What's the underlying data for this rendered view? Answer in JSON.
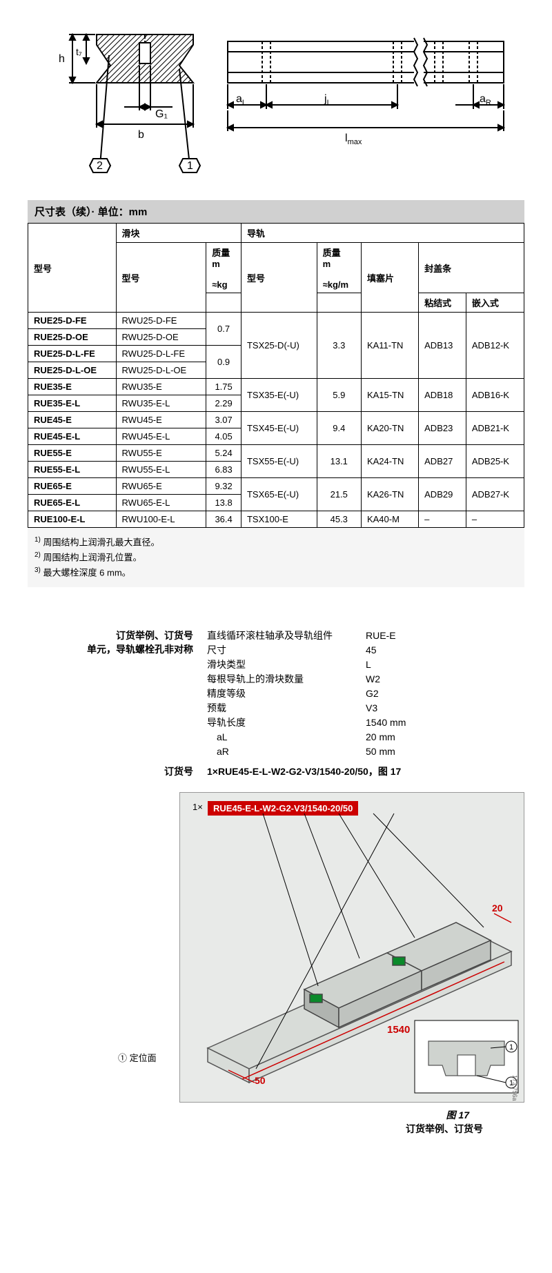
{
  "diagram": {
    "labels": {
      "h": "h",
      "t7": "t₇",
      "G1": "G₁",
      "b": "b",
      "aL": "a",
      "aLsub": "L",
      "jL": "j",
      "jLsub": "L",
      "aR": "a",
      "aRsub": "R",
      "lmax": "l",
      "lmaxsub": "max",
      "n1": "1",
      "n2": "2"
    }
  },
  "table": {
    "title": "尺寸表（续）· 单位：mm",
    "headers": {
      "model": "型号",
      "slider": "滑块",
      "rail": "导轨",
      "slider_model": "型号",
      "mass": "质量",
      "m": "m",
      "kg": "≈kg",
      "rail_model": "型号",
      "kgm": "≈kg/m",
      "filler": "填塞片",
      "cover": "封盖条",
      "adhesive": "粘结式",
      "embedded": "嵌入式"
    },
    "rows": [
      {
        "m": "RUE25-D-FE",
        "sm": "RWU25-D-FE",
        "mass": "0.7",
        "mass_span": 2,
        "rm": "TSX25-D(-U)",
        "rmass": "3.3",
        "filler": "KA11-TN",
        "adh": "ADB13",
        "emb": "ADB12-K",
        "g_span": 4
      },
      {
        "m": "RUE25-D-OE",
        "sm": "RWU25-D-OE"
      },
      {
        "m": "RUE25-D-L-FE",
        "sm": "RWU25-D-L-FE",
        "mass": "0.9",
        "mass_span": 2
      },
      {
        "m": "RUE25-D-L-OE",
        "sm": "RWU25-D-L-OE"
      },
      {
        "m": "RUE35-E",
        "sm": "RWU35-E",
        "mass": "1.75",
        "rm": "TSX35-E(-U)",
        "rmass": "5.9",
        "filler": "KA15-TN",
        "adh": "ADB18",
        "emb": "ADB16-K",
        "g_span": 2
      },
      {
        "m": "RUE35-E-L",
        "sm": "RWU35-E-L",
        "mass": "2.29"
      },
      {
        "m": "RUE45-E",
        "sm": "RWU45-E",
        "mass": "3.07",
        "rm": "TSX45-E(-U)",
        "rmass": "9.4",
        "filler": "KA20-TN",
        "adh": "ADB23",
        "emb": "ADB21-K",
        "g_span": 2
      },
      {
        "m": "RUE45-E-L",
        "sm": "RWU45-E-L",
        "mass": "4.05"
      },
      {
        "m": "RUE55-E",
        "sm": "RWU55-E",
        "mass": "5.24",
        "rm": "TSX55-E(-U)",
        "rmass": "13.1",
        "filler": "KA24-TN",
        "adh": "ADB27",
        "emb": "ADB25-K",
        "g_span": 2
      },
      {
        "m": "RUE55-E-L",
        "sm": "RWU55-E-L",
        "mass": "6.83"
      },
      {
        "m": "RUE65-E",
        "sm": "RWU65-E",
        "mass": "9.32",
        "rm": "TSX65-E(-U)",
        "rmass": "21.5",
        "filler": "KA26-TN",
        "adh": "ADB29",
        "emb": "ADB27-K",
        "g_span": 2
      },
      {
        "m": "RUE65-E-L",
        "sm": "RWU65-E-L",
        "mass": "13.8"
      },
      {
        "m": "RUE100-E-L",
        "sm": "RWU100-E-L",
        "mass": "36.4",
        "rm": "TSX100-E",
        "rmass": "45.3",
        "filler": "KA40-M",
        "adh": "–",
        "emb": "–",
        "g_span": 1
      }
    ]
  },
  "footnotes": {
    "f1": "周围结构上润滑孔最大直径。",
    "f2": "周围结构上润滑孔位置。",
    "f3": "最大螺栓深度 6 mm。"
  },
  "order": {
    "heading1": "订货举例、订货号",
    "heading2": "单元，导轨螺栓孔非对称",
    "specs": [
      {
        "label": "直线循环滚柱轴承及导轨组件",
        "val": "RUE-E"
      },
      {
        "label": "尺寸",
        "val": "45"
      },
      {
        "label": "滑块类型",
        "val": "L"
      },
      {
        "label": "每根导轨上的滑块数量",
        "val": "W2"
      },
      {
        "label": "精度等级",
        "val": "G2"
      },
      {
        "label": "预载",
        "val": "V3"
      },
      {
        "label": "导轨长度",
        "val": "1540 mm"
      },
      {
        "label": "　aL",
        "val": "20 mm"
      },
      {
        "label": "　aR",
        "val": "50 mm"
      }
    ],
    "code_label": "订货号",
    "code_val": "1×RUE45-E-L-W2-G2-V3/1540-20/50，图 17",
    "badge_prefix": "1×",
    "badge": "RUE45-E-L-W2-G2-V3/1540-20/50",
    "loc": "① 定位面",
    "fig_num": "图 17",
    "fig_caption": "订货举例、订货号",
    "side": "173 756a",
    "dim20": "20",
    "dim50": "50",
    "dim1540": "1540",
    "c1": "1"
  }
}
